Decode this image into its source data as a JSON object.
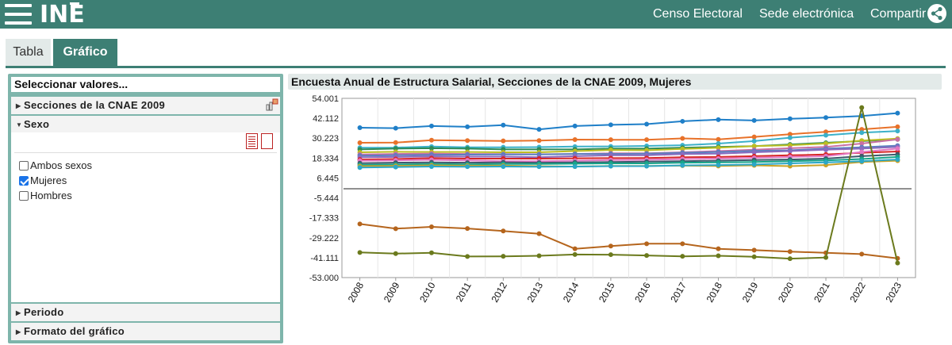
{
  "header": {
    "logo_text": "INE",
    "links": [
      "Censo Electoral",
      "Sede electrónica",
      "Compartir"
    ],
    "icons": [
      "menu-icon",
      "share-icon"
    ]
  },
  "tabs": [
    {
      "label": "Tabla",
      "active": false
    },
    {
      "label": "Gráfico",
      "active": true
    }
  ],
  "left_panel": {
    "title": "Seleccionar valores...",
    "sections": [
      {
        "label": "Secciones de la CNAE 2009",
        "expanded": false
      },
      {
        "label": "Sexo",
        "expanded": true
      },
      {
        "label": "Periodo",
        "expanded": false
      },
      {
        "label": "Formato del gráfico",
        "expanded": false
      }
    ],
    "sexo_options": [
      {
        "label": "Ambos sexos",
        "checked": false
      },
      {
        "label": "Mujeres",
        "checked": true
      },
      {
        "label": "Hombres",
        "checked": false
      }
    ]
  },
  "chart_data": {
    "type": "line",
    "title": "Encuesta Anual de Estructura Salarial, Secciones de la CNAE 2009, Mujeres",
    "xlabel": "",
    "ylabel": "",
    "x": [
      "2008",
      "2009",
      "2010",
      "2011",
      "2012",
      "2013",
      "2014",
      "2015",
      "2016",
      "2017",
      "2018",
      "2019",
      "2020",
      "2021",
      "2022",
      "2023"
    ],
    "ylim": [
      -53.0,
      54.001
    ],
    "yticks": [
      "54.001",
      "42.112",
      "30.223",
      "18.334",
      "6.445",
      "-5.444",
      "-17.333",
      "-29.222",
      "-41.111",
      "-53.000"
    ],
    "zero_line": true,
    "grid": "vertical",
    "legend": "none",
    "series": [
      {
        "color": "#1f7fc8",
        "values": [
          36.5,
          36.2,
          37.5,
          37.0,
          38.0,
          35.5,
          37.5,
          38.2,
          38.6,
          40.3,
          41.3,
          40.8,
          41.8,
          42.5,
          43.5,
          45.2
        ]
      },
      {
        "color": "#e8722a",
        "values": [
          27.5,
          27.6,
          29.0,
          28.8,
          28.6,
          28.8,
          29.4,
          29.3,
          29.3,
          30.1,
          29.5,
          31.0,
          32.6,
          34.0,
          35.5,
          37.0
        ]
      },
      {
        "color": "#3bb0c9",
        "values": [
          24.5,
          24.6,
          25.2,
          24.8,
          24.8,
          24.9,
          25.2,
          25.3,
          25.6,
          26.0,
          27.0,
          28.5,
          30.5,
          32.0,
          33.5,
          34.5
        ]
      },
      {
        "color": "#2e8b57",
        "values": [
          23.5,
          24.0,
          24.2,
          24.0,
          23.5,
          23.5,
          23.5,
          24.0,
          24.0,
          24.5,
          25.0,
          25.5,
          26.5,
          27.5,
          28.5,
          29.5
        ]
      },
      {
        "color": "#bcbd22",
        "values": [
          21.8,
          22.1,
          22.0,
          22.0,
          21.8,
          21.8,
          22.5,
          23.2,
          23.0,
          23.8,
          24.5,
          25.5,
          26.0,
          27.0,
          28.8,
          30.0
        ]
      },
      {
        "color": "#c96fa3",
        "values": [
          20.5,
          20.8,
          21.0,
          20.8,
          20.7,
          20.6,
          20.8,
          21.2,
          21.2,
          21.8,
          22.5,
          23.3,
          24.2,
          25.0,
          27.0,
          29.5
        ]
      },
      {
        "color": "#5b7fbf",
        "values": [
          19.8,
          20.0,
          20.3,
          20.4,
          20.5,
          20.5,
          20.8,
          20.8,
          21.0,
          21.5,
          22.0,
          22.6,
          23.0,
          24.0,
          24.8,
          25.8
        ]
      },
      {
        "color": "#8a6bbf",
        "values": [
          18.8,
          19.0,
          19.4,
          19.2,
          19.2,
          18.8,
          19.5,
          20.0,
          20.0,
          20.7,
          21.0,
          21.8,
          22.5,
          23.3,
          24.0,
          25.0
        ]
      },
      {
        "color": "#d62728",
        "values": [
          17.5,
          17.8,
          18.3,
          18.0,
          18.0,
          18.0,
          18.2,
          18.3,
          18.4,
          18.8,
          19.0,
          19.5,
          20.0,
          20.5,
          21.5,
          22.3
        ]
      },
      {
        "color": "#e377c2",
        "values": [
          16.8,
          17.0,
          17.3,
          17.0,
          16.5,
          16.5,
          16.8,
          17.2,
          17.3,
          17.8,
          18.0,
          18.5,
          19.0,
          19.5,
          22.0,
          24.0
        ]
      },
      {
        "color": "#3d5a6c",
        "values": [
          15.3,
          15.6,
          15.8,
          15.6,
          15.8,
          15.6,
          15.8,
          16.0,
          16.2,
          16.5,
          16.8,
          17.2,
          17.5,
          18.0,
          19.5,
          20.5
        ]
      },
      {
        "color": "#17a589",
        "values": [
          14.3,
          14.5,
          14.8,
          14.6,
          14.8,
          14.8,
          15.0,
          15.2,
          15.2,
          15.6,
          15.8,
          16.0,
          16.5,
          17.0,
          17.8,
          19.0
        ]
      },
      {
        "color": "#c9a227",
        "values": [
          13.5,
          13.7,
          14.0,
          13.8,
          13.8,
          13.5,
          13.3,
          13.6,
          13.6,
          13.8,
          13.6,
          14.0,
          13.5,
          14.2,
          16.0,
          16.8
        ]
      },
      {
        "color": "#2ca7c7",
        "values": [
          12.7,
          13.0,
          13.3,
          13.2,
          13.3,
          13.2,
          13.3,
          13.5,
          13.5,
          14.0,
          14.2,
          14.5,
          15.2,
          15.8,
          16.5,
          17.5
        ]
      },
      {
        "color": "#b5651d",
        "values": [
          -21.0,
          -23.8,
          -22.7,
          -23.7,
          -25.2,
          -26.8,
          -35.8,
          -34.2,
          -32.8,
          -32.8,
          -35.8,
          -36.6,
          -37.5,
          -38.2,
          -39.0,
          -41.5
        ]
      },
      {
        "color": "#6b7a1d",
        "values": [
          -38.0,
          -38.7,
          -38.2,
          -40.4,
          -40.3,
          -40.0,
          -39.2,
          -39.3,
          -39.8,
          -40.3,
          -40.0,
          -40.6,
          -41.7,
          -41.0,
          48.5,
          -44.3
        ]
      }
    ]
  }
}
